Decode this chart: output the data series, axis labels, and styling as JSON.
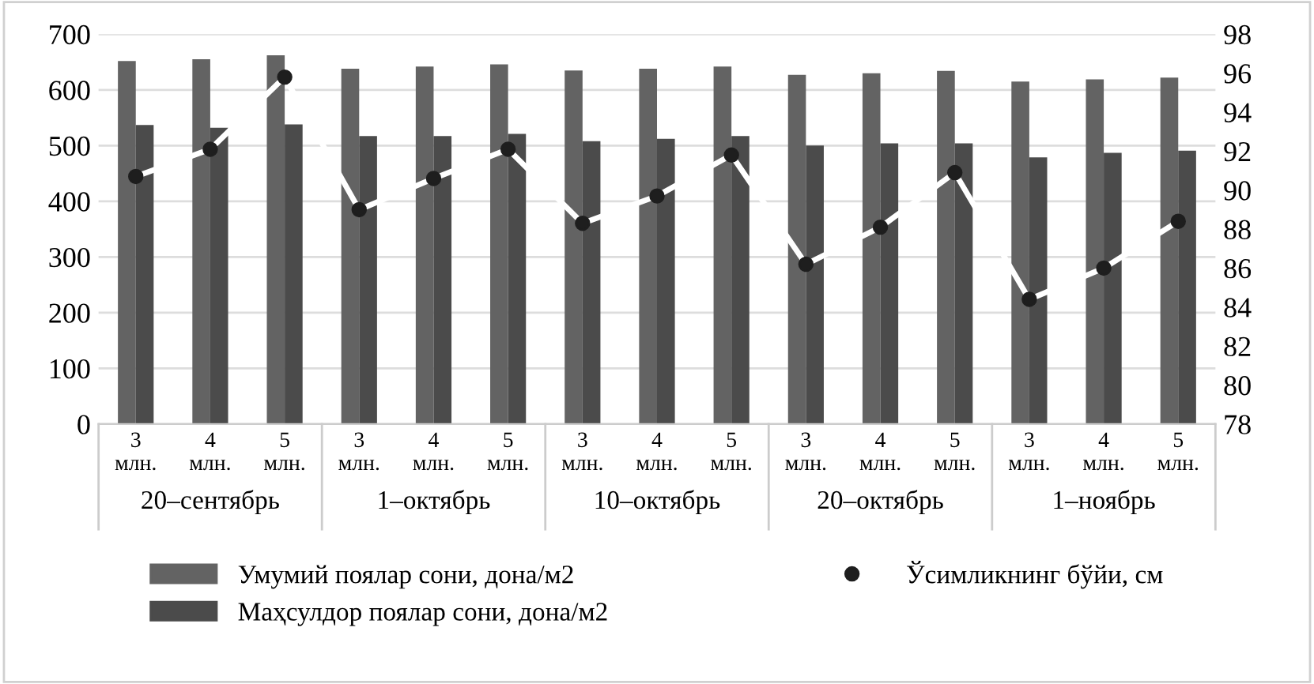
{
  "chart_data": {
    "type": "bar",
    "categories": [
      "3\nмлн.",
      "4\nмлн.",
      "5\nмлн.",
      "3\nмлн.",
      "4\nмлн.",
      "5\nмлн.",
      "3\nмлн.",
      "4\nмлн.",
      "5\nмлн.",
      "3\nмлн.",
      "4\nмлн.",
      "5\nмлн.",
      "3\nмлн.",
      "4\nмлн.",
      "5\nмлн."
    ],
    "series": [
      {
        "name": "Умумий поялар сони, дона/м2",
        "color": "#636363",
        "values": [
          652,
          655,
          662,
          638,
          642,
          646,
          635,
          638,
          642,
          627,
          630,
          634,
          615,
          619,
          622
        ]
      },
      {
        "name": "Маҳсулдор поялар сони, дона/м2",
        "color": "#4b4b4b",
        "values": [
          537,
          532,
          538,
          517,
          517,
          521,
          508,
          512,
          517,
          500,
          504,
          504,
          479,
          487,
          491
        ]
      },
      {
        "name": "Ўсимликнинг бўйи, см",
        "type": "line",
        "axis": "y2",
        "color": "#1e1e1e",
        "marker": "circle",
        "values": [
          90.7,
          92.1,
          95.8,
          89.0,
          90.6,
          92.1,
          88.3,
          89.7,
          91.8,
          86.2,
          88.1,
          90.9,
          84.4,
          86.0,
          88.4
        ]
      }
    ],
    "annotations": [
      "20–сентябрь",
      "1–октябрь",
      "10–октябрь",
      "20–октябрь",
      "1–ноябрь"
    ],
    "ylim": [
      0,
      700
    ],
    "yticks": [
      0,
      100,
      200,
      300,
      400,
      500,
      600,
      700
    ],
    "y2lim": [
      78,
      98
    ],
    "y2ticks": [
      78,
      80,
      82,
      84,
      86,
      88,
      90,
      92,
      94,
      96,
      98
    ],
    "grid": "y",
    "legend": "bottom"
  }
}
